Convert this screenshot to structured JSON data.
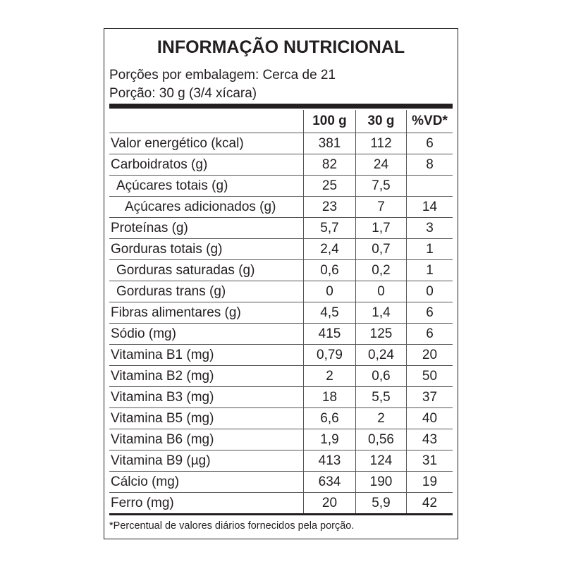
{
  "title": "INFORMAÇÃO NUTRICIONAL",
  "servings_per_package": "Porções por embalagem: Cerca de 21",
  "serving_size": "Porção: 30 g (3/4 xícara)",
  "columns": [
    "",
    "100 g",
    "30 g",
    "%VD*"
  ],
  "rows": [
    {
      "label": "Valor energético (kcal)",
      "indent": 0,
      "v100": "381",
      "v30": "112",
      "vd": "6"
    },
    {
      "label": "Carboidratos (g)",
      "indent": 0,
      "v100": "82",
      "v30": "24",
      "vd": "8"
    },
    {
      "label": "Açúcares totais (g)",
      "indent": 1,
      "v100": "25",
      "v30": "7,5",
      "vd": ""
    },
    {
      "label": "Açúcares adicionados (g)",
      "indent": 2,
      "v100": "23",
      "v30": "7",
      "vd": "14"
    },
    {
      "label": "Proteínas (g)",
      "indent": 0,
      "v100": "5,7",
      "v30": "1,7",
      "vd": "3"
    },
    {
      "label": "Gorduras totais (g)",
      "indent": 0,
      "v100": "2,4",
      "v30": "0,7",
      "vd": "1"
    },
    {
      "label": "Gorduras saturadas (g)",
      "indent": 1,
      "v100": "0,6",
      "v30": "0,2",
      "vd": "1"
    },
    {
      "label": "Gorduras trans (g)",
      "indent": 1,
      "v100": "0",
      "v30": "0",
      "vd": "0"
    },
    {
      "label": "Fibras alimentares (g)",
      "indent": 0,
      "v100": "4,5",
      "v30": "1,4",
      "vd": "6"
    },
    {
      "label": "Sódio (mg)",
      "indent": 0,
      "v100": "415",
      "v30": "125",
      "vd": "6"
    },
    {
      "label": "Vitamina B1 (mg)",
      "indent": 0,
      "v100": "0,79",
      "v30": "0,24",
      "vd": "20"
    },
    {
      "label": "Vitamina B2 (mg)",
      "indent": 0,
      "v100": "2",
      "v30": "0,6",
      "vd": "50"
    },
    {
      "label": "Vitamina B3 (mg)",
      "indent": 0,
      "v100": "18",
      "v30": "5,5",
      "vd": "37"
    },
    {
      "label": "Vitamina B5 (mg)",
      "indent": 0,
      "v100": "6,6",
      "v30": "2",
      "vd": "40"
    },
    {
      "label": "Vitamina B6 (mg)",
      "indent": 0,
      "v100": "1,9",
      "v30": "0,56",
      "vd": "43"
    },
    {
      "label": "Vitamina B9 (µg)",
      "indent": 0,
      "v100": "413",
      "v30": "124",
      "vd": "31"
    },
    {
      "label": "Cálcio (mg)",
      "indent": 0,
      "v100": "634",
      "v30": "190",
      "vd": "19"
    },
    {
      "label": "Ferro (mg)",
      "indent": 0,
      "v100": "20",
      "v30": "5,9",
      "vd": "42"
    }
  ],
  "footnote": "*Percentual de valores diários fornecidos pela porção."
}
